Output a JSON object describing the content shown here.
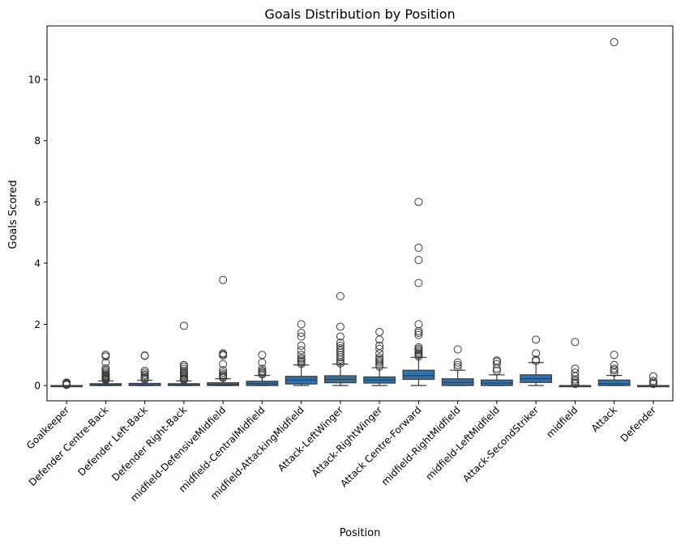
{
  "chart_data": {
    "type": "box",
    "title": "Goals Distribution by Position",
    "xlabel": "Position",
    "ylabel": "Goals Scored",
    "ylim": [
      -0.5,
      11.75
    ],
    "yticks": [
      0,
      2,
      4,
      6,
      8,
      10
    ],
    "grid": false,
    "box_color": "#2f72ad",
    "edge_color": "#3a3a3a",
    "categories": [
      "Goalkeeper",
      "Defender Centre-Back",
      "Defender Left-Back",
      "Defender Right-Back",
      "midfield-DefensiveMidfield",
      "midfield-CentralMidfield",
      "midfield-AttackingMidfield",
      "Attack-LeftWinger",
      "Attack-RightWinger",
      "Attack Centre-Forward",
      "midfield-RightMidfield",
      "midfield-LeftMidfield",
      "Attack-SecondStriker",
      "midfield",
      "Attack",
      "Defender"
    ],
    "boxes": [
      {
        "q1": 0.0,
        "median": 0.0,
        "q3": 0.0,
        "whislo": 0.0,
        "whishi": 0.0,
        "fliers": [
          0.02,
          0.04,
          0.06,
          0.08,
          0.1
        ]
      },
      {
        "q1": 0.0,
        "median": 0.02,
        "q3": 0.06,
        "whislo": 0.0,
        "whishi": 0.15,
        "fliers": [
          0.18,
          0.2,
          0.22,
          0.25,
          0.28,
          0.3,
          0.33,
          0.36,
          0.4,
          0.45,
          0.5,
          0.56,
          0.75,
          0.95,
          1.0,
          1.0
        ]
      },
      {
        "q1": 0.0,
        "median": 0.02,
        "q3": 0.07,
        "whislo": 0.0,
        "whishi": 0.17,
        "fliers": [
          0.2,
          0.23,
          0.27,
          0.32,
          0.36,
          0.42,
          0.48,
          0.97,
          0.98
        ]
      },
      {
        "q1": 0.0,
        "median": 0.02,
        "q3": 0.06,
        "whislo": 0.0,
        "whishi": 0.15,
        "fliers": [
          0.18,
          0.2,
          0.23,
          0.26,
          0.3,
          0.34,
          0.38,
          0.42,
          0.48,
          0.55,
          0.62,
          0.67,
          1.95
        ]
      },
      {
        "q1": 0.0,
        "median": 0.03,
        "q3": 0.09,
        "whislo": 0.0,
        "whishi": 0.22,
        "fliers": [
          0.25,
          0.28,
          0.32,
          0.36,
          0.42,
          0.5,
          0.7,
          0.98,
          1.02,
          1.05,
          3.45
        ]
      },
      {
        "q1": 0.0,
        "median": 0.06,
        "q3": 0.14,
        "whislo": 0.0,
        "whishi": 0.33,
        "fliers": [
          0.36,
          0.4,
          0.44,
          0.48,
          0.55,
          0.75,
          1.0
        ]
      },
      {
        "q1": 0.05,
        "median": 0.18,
        "q3": 0.3,
        "whislo": 0.0,
        "whishi": 0.67,
        "fliers": [
          0.7,
          0.75,
          0.8,
          0.85,
          0.9,
          1.0,
          1.15,
          1.3,
          1.6,
          1.72,
          2.0
        ]
      },
      {
        "q1": 0.09,
        "median": 0.2,
        "q3": 0.32,
        "whislo": 0.0,
        "whishi": 0.7,
        "fliers": [
          0.72,
          0.77,
          0.85,
          0.92,
          1.0,
          1.08,
          1.15,
          1.22,
          1.3,
          1.4,
          1.6,
          1.92,
          2.92
        ]
      },
      {
        "q1": 0.08,
        "median": 0.18,
        "q3": 0.28,
        "whislo": 0.0,
        "whishi": 0.58,
        "fliers": [
          0.62,
          0.68,
          0.75,
          0.8,
          0.86,
          0.92,
          1.05,
          1.2,
          1.3,
          1.5,
          1.75
        ]
      },
      {
        "q1": 0.2,
        "median": 0.32,
        "q3": 0.5,
        "whislo": 0.0,
        "whishi": 0.92,
        "fliers": [
          0.95,
          1.0,
          1.05,
          1.1,
          1.15,
          1.2,
          1.25,
          1.65,
          1.72,
          1.78,
          2.0,
          3.35,
          4.1,
          4.5,
          6.0
        ]
      },
      {
        "q1": 0.0,
        "median": 0.1,
        "q3": 0.22,
        "whislo": 0.0,
        "whishi": 0.5,
        "fliers": [
          0.6,
          0.67,
          0.75,
          1.18
        ]
      },
      {
        "q1": 0.0,
        "median": 0.08,
        "q3": 0.18,
        "whislo": 0.0,
        "whishi": 0.35,
        "fliers": [
          0.48,
          0.55,
          0.7,
          0.78,
          0.82
        ]
      },
      {
        "q1": 0.1,
        "median": 0.22,
        "q3": 0.35,
        "whislo": 0.0,
        "whishi": 0.75,
        "fliers": [
          0.8,
          0.85,
          1.05,
          1.5
        ]
      },
      {
        "q1": 0.0,
        "median": 0.0,
        "q3": 0.0,
        "whislo": 0.0,
        "whishi": 0.0,
        "fliers": [
          0.05,
          0.1,
          0.15,
          0.2,
          0.3,
          0.42,
          0.55,
          1.42
        ]
      },
      {
        "q1": 0.0,
        "median": 0.06,
        "q3": 0.18,
        "whislo": 0.0,
        "whishi": 0.33,
        "fliers": [
          0.42,
          0.5,
          0.55,
          0.67,
          1.0,
          11.22
        ]
      },
      {
        "q1": 0.0,
        "median": 0.0,
        "q3": 0.0,
        "whislo": 0.0,
        "whishi": 0.0,
        "fliers": [
          0.05,
          0.1,
          0.15,
          0.3
        ]
      }
    ]
  }
}
